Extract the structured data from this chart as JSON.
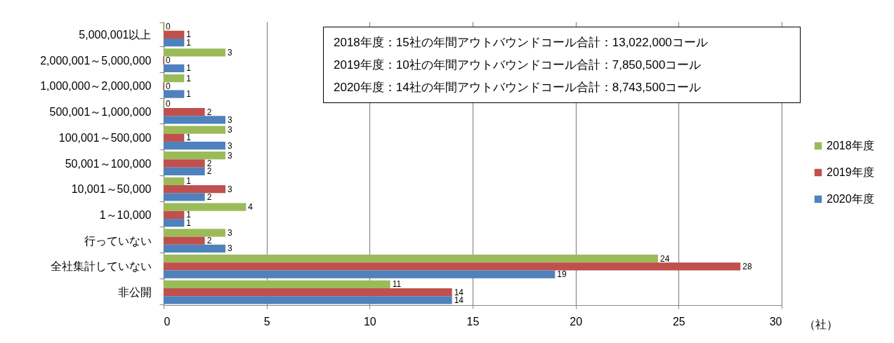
{
  "chart_data": {
    "type": "bar",
    "orientation": "horizontal",
    "categories": [
      "5,000,001以上",
      "2,000,001～5,000,000",
      "1,000,000～2,000,000",
      "500,001～1,000,000",
      "100,001～500,000",
      "50,001～100,000",
      "10,001～50,000",
      "1～10,000",
      "行っていない",
      "全社集計していない",
      "非公開"
    ],
    "series": [
      {
        "name": "2018年度",
        "color": "#9bbb59",
        "values": [
          0,
          3,
          1,
          0,
          3,
          3,
          1,
          4,
          3,
          24,
          11
        ]
      },
      {
        "name": "2019年度",
        "color": "#c0504d",
        "values": [
          1,
          0,
          0,
          2,
          1,
          2,
          3,
          1,
          2,
          28,
          14
        ]
      },
      {
        "name": "2020年度",
        "color": "#4f81bd",
        "values": [
          1,
          1,
          1,
          3,
          3,
          2,
          2,
          1,
          3,
          19,
          14
        ]
      }
    ],
    "xlim": [
      0,
      30
    ],
    "xticks": [
      0,
      5,
      10,
      15,
      20,
      25,
      30
    ],
    "xlabel": "（社）",
    "grid": "x",
    "legend": "right",
    "data_labels": true,
    "annotations": [
      "2018年度：15社の年間アウトバウンドコール合計：13,022,000コール",
      "2019年度：10社の年間アウトバウンドコール合計：7,850,500コール",
      "2020年度：14社の年間アウトバウンドコール合計：8,743,500コール"
    ]
  }
}
